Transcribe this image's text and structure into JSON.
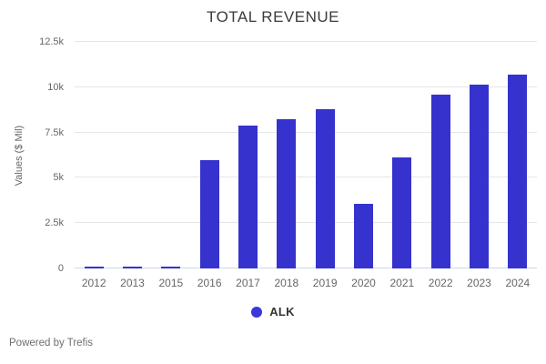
{
  "chart": {
    "title": "TOTAL REVENUE",
    "ylabel": "Values ($ Mil)",
    "legend_label": "ALK"
  },
  "footer": {
    "powered_by": "Powered by Trefis"
  },
  "colors": {
    "bar": "#3532cd",
    "legend_dot": "#3a36dc",
    "gridline": "#e6e6e6",
    "axis_line": "#ccd6eb",
    "title_text": "#3b3b3b",
    "tick_text": "#666666"
  },
  "chart_data": {
    "type": "bar",
    "title": "TOTAL REVENUE",
    "xlabel": "",
    "ylabel": "Values ($ Mil)",
    "categories": [
      "2012",
      "2013",
      "2015",
      "2016",
      "2017",
      "2018",
      "2019",
      "2020",
      "2021",
      "2022",
      "2023",
      "2024"
    ],
    "series": [
      {
        "name": "ALK",
        "values": [
          100,
          100,
          100,
          5950,
          7900,
          8250,
          8800,
          3550,
          6150,
          9600,
          10150,
          10700
        ]
      }
    ],
    "ylim": [
      0,
      12500
    ],
    "yticks": [
      {
        "value": 0,
        "label": "0"
      },
      {
        "value": 2500,
        "label": "2.5k"
      },
      {
        "value": 5000,
        "label": "5k"
      },
      {
        "value": 7500,
        "label": "7.5k"
      },
      {
        "value": 10000,
        "label": "10k"
      },
      {
        "value": 12500,
        "label": "12.5k"
      }
    ],
    "grid": true,
    "legend_position": "bottom"
  }
}
